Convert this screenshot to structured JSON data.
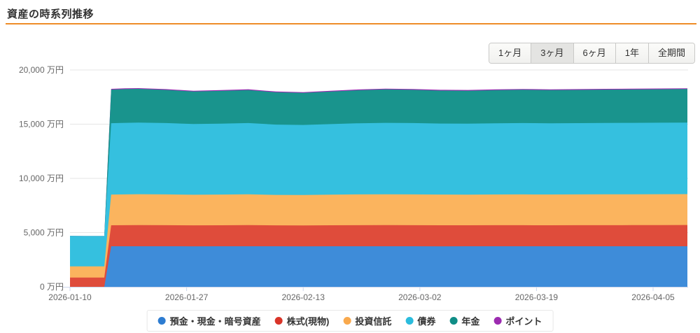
{
  "page": {
    "title": "資産の時系列推移"
  },
  "controls": {
    "ranges": [
      {
        "label": "1ヶ月",
        "selected": false
      },
      {
        "label": "3ヶ月",
        "selected": true
      },
      {
        "label": "6ヶ月",
        "selected": false
      },
      {
        "label": "1年",
        "selected": false
      },
      {
        "label": "全期間",
        "selected": false
      }
    ]
  },
  "chart_data": {
    "type": "area",
    "stacked": true,
    "unit": "万円",
    "start_date": "2026-01-10",
    "ylim": [
      0,
      20000
    ],
    "grid": true,
    "legend_position": "bottom",
    "days": [
      0,
      2,
      4,
      5,
      6,
      8,
      10,
      14,
      18,
      22,
      26,
      30,
      34,
      38,
      42,
      46,
      50,
      54,
      58,
      62,
      66,
      70,
      74,
      78,
      82,
      86,
      90
    ],
    "xticks": [
      {
        "day": 0,
        "label": "2026-01-10"
      },
      {
        "day": 17,
        "label": "2026-01-27"
      },
      {
        "day": 34,
        "label": "2026-02-13"
      },
      {
        "day": 51,
        "label": "2026-03-02"
      },
      {
        "day": 68,
        "label": "2026-03-19"
      },
      {
        "day": 85,
        "label": "2026-04-05"
      }
    ],
    "yticks": [
      {
        "value": 0,
        "label": "0 万円"
      },
      {
        "value": 5000,
        "label": "5,000 万円"
      },
      {
        "value": 10000,
        "label": "10,000 万円"
      },
      {
        "value": 15000,
        "label": "15,000 万円"
      },
      {
        "value": 20000,
        "label": "20,000 万円"
      }
    ],
    "series": [
      {
        "name": "預金・現金・暗号資産",
        "marker_color": "#2d7cd1",
        "area_color": "#3e8cd9",
        "values": [
          0,
          0,
          0,
          0,
          3740,
          3740,
          3745,
          3740,
          3735,
          3740,
          3745,
          3740,
          3738,
          3740,
          3742,
          3740,
          3740,
          3738,
          3740,
          3742,
          3740,
          3740,
          3742,
          3740,
          3740,
          3742,
          3745
        ]
      },
      {
        "name": "株式(現物)",
        "marker_color": "#d93428",
        "area_color": "#df4c3b",
        "values": [
          860,
          860,
          858,
          857,
          1940,
          1945,
          1950,
          1945,
          1935,
          1940,
          1945,
          1930,
          1925,
          1935,
          1945,
          1950,
          1945,
          1940,
          1938,
          1942,
          1945,
          1940,
          1942,
          1945,
          1948,
          1950,
          1955
        ]
      },
      {
        "name": "投資信託",
        "marker_color": "#f9a94d",
        "area_color": "#fbb45e",
        "values": [
          1030,
          1028,
          1030,
          1030,
          2830,
          2840,
          2845,
          2835,
          2820,
          2830,
          2840,
          2810,
          2805,
          2820,
          2835,
          2845,
          2840,
          2830,
          2828,
          2835,
          2840,
          2835,
          2838,
          2842,
          2845,
          2848,
          2850
        ]
      },
      {
        "name": "債券",
        "marker_color": "#2bbcdd",
        "area_color": "#35c0df",
        "values": [
          2800,
          2795,
          2798,
          2800,
          6580,
          6600,
          6610,
          6580,
          6520,
          6540,
          6570,
          6480,
          6460,
          6510,
          6560,
          6590,
          6575,
          6550,
          6545,
          6560,
          6580,
          6570,
          6575,
          6585,
          6590,
          6595,
          6600
        ]
      },
      {
        "name": "年金",
        "marker_color": "#0f8d86",
        "area_color": "#19948d",
        "values": [
          0,
          0,
          0,
          0,
          3100,
          3110,
          3105,
          3060,
          3000,
          3020,
          3050,
          2980,
          2960,
          3000,
          3050,
          3080,
          3070,
          3040,
          3035,
          3055,
          3070,
          3060,
          3065,
          3075,
          3080,
          3085,
          3090
        ]
      },
      {
        "name": "ポイント",
        "marker_color": "#9c2bb0",
        "area_color": "#9c2bb0",
        "values": [
          0,
          0,
          0,
          0,
          70,
          70,
          70,
          70,
          70,
          70,
          70,
          70,
          70,
          70,
          70,
          70,
          70,
          70,
          70,
          70,
          70,
          70,
          70,
          70,
          70,
          70,
          70
        ]
      }
    ]
  }
}
